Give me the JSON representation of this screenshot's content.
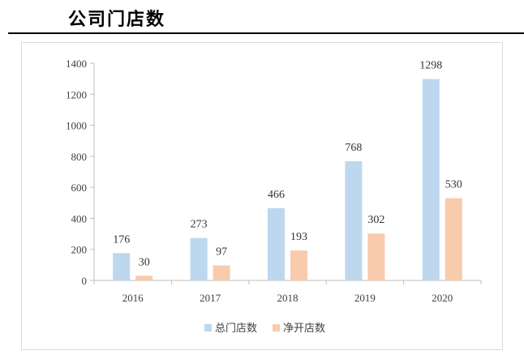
{
  "header": {
    "title": "公司门店数"
  },
  "chart_data": {
    "type": "bar",
    "categories": [
      "2016",
      "2017",
      "2018",
      "2019",
      "2020"
    ],
    "series": [
      {
        "name": "总门店数",
        "values": [
          176,
          273,
          466,
          768,
          1298
        ],
        "color": "#bdd7ee"
      },
      {
        "name": "净开店数",
        "values": [
          30,
          97,
          193,
          302,
          530
        ],
        "color": "#f8cbad"
      }
    ],
    "ylim": [
      0,
      1400
    ],
    "yticks": [
      0,
      200,
      400,
      600,
      800,
      1000,
      1200,
      1400
    ],
    "xlabel": "",
    "ylabel": "",
    "grid": false,
    "legend": "bottom"
  }
}
